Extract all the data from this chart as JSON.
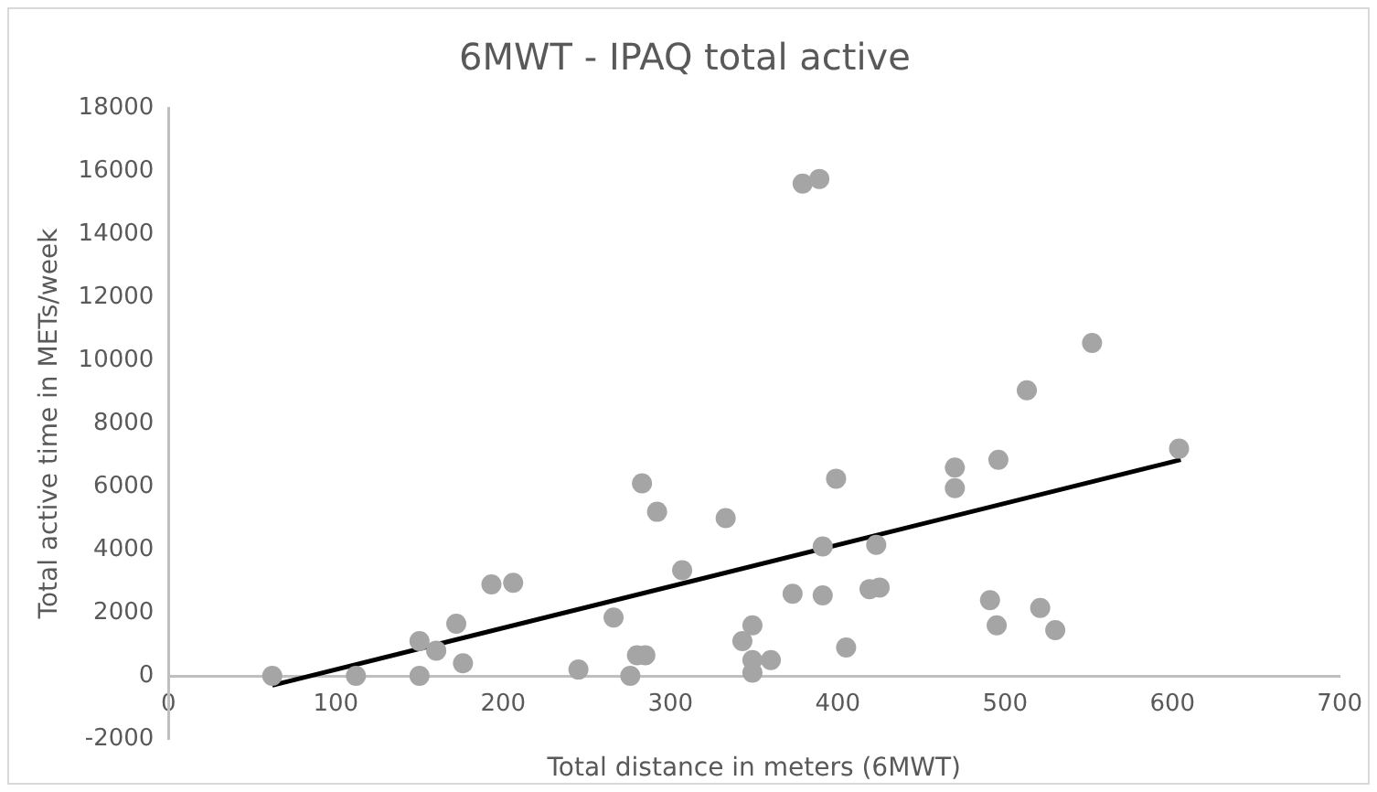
{
  "chart_data": {
    "type": "scatter",
    "title": "6MWT - IPAQ total active",
    "xlabel": "Total distance in meters (6MWT)",
    "ylabel": "Total active time in METs/week",
    "xlim": [
      0,
      700
    ],
    "xticks": [
      0,
      100,
      200,
      300,
      400,
      500,
      600,
      700
    ],
    "ylim": [
      -2000,
      18000
    ],
    "yticks": [
      -2000,
      0,
      2000,
      4000,
      6000,
      8000,
      10000,
      12000,
      14000,
      16000,
      18000
    ],
    "grid": false,
    "legend": false,
    "marker": "circle",
    "series": [
      {
        "color": "#a5a5a5",
        "x": [
          62,
          112,
          150,
          150,
          160,
          172,
          176,
          193,
          206,
          245,
          266,
          276,
          280,
          285,
          283,
          292,
          307,
          333,
          343,
          349,
          349,
          349,
          360,
          373,
          379,
          389,
          391,
          391,
          399,
          405,
          419,
          425,
          423,
          470,
          470,
          491,
          495,
          496,
          513,
          521,
          530,
          552,
          604
        ],
        "values": [
          0,
          0,
          1100,
          0,
          800,
          1650,
          400,
          2900,
          2950,
          200,
          1850,
          0,
          650,
          650,
          6100,
          5200,
          3350,
          5000,
          1100,
          1600,
          500,
          100,
          500,
          2600,
          15600,
          15750,
          2550,
          4100,
          6250,
          900,
          2750,
          2800,
          4150,
          6600,
          5950,
          2400,
          1600,
          6850,
          9050,
          2150,
          1450,
          10550,
          7200
        ]
      },
      {
        "type": "line",
        "color": "#000000",
        "x": [
          62,
          605
        ],
        "values": [
          -300,
          6850
        ],
        "marker": "none"
      }
    ]
  }
}
